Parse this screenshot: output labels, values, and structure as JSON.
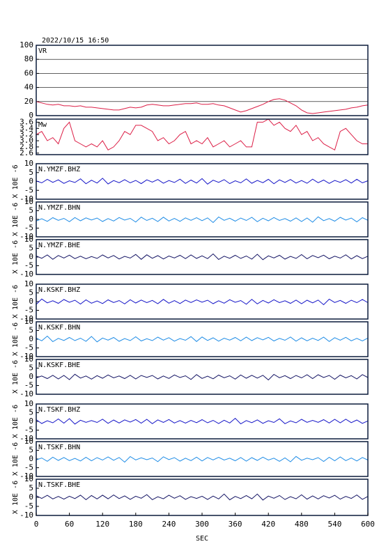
{
  "timestamp": "2022/10/15 16:50",
  "time": {
    "x": [
      0,
      10,
      20,
      30,
      40,
      50,
      60,
      70,
      80,
      90,
      100,
      110,
      120,
      130,
      140,
      150,
      160,
      170,
      180,
      190,
      200,
      210,
      220,
      230,
      240,
      250,
      260,
      270,
      280,
      290,
      300,
      310,
      320,
      330,
      340,
      350,
      360,
      370,
      380,
      390,
      400,
      410,
      420,
      430,
      440,
      450,
      460,
      470,
      480,
      490,
      500,
      510,
      520,
      530,
      540,
      550,
      560,
      570,
      580,
      590,
      600
    ],
    "xlim": [
      0,
      600
    ],
    "xticks": [
      0,
      60,
      120,
      180,
      240,
      300,
      360,
      420,
      480,
      540,
      600
    ],
    "xlabel": "SEC"
  },
  "chart_data": [
    {
      "type": "line",
      "title": "VR",
      "ylim": [
        0,
        100
      ],
      "yticks": [
        0,
        20,
        40,
        60,
        80,
        100
      ],
      "grid": true,
      "series": [
        {
          "color": "#dc1e46",
          "values": [
            20,
            18,
            16,
            15,
            16,
            14,
            14,
            13,
            14,
            12,
            12,
            11,
            10,
            9,
            8,
            8,
            10,
            12,
            11,
            12,
            15,
            16,
            15,
            14,
            14,
            15,
            16,
            17,
            17,
            18,
            16,
            16,
            17,
            15,
            14,
            11,
            8,
            5,
            7,
            10,
            13,
            16,
            20,
            23,
            24,
            22,
            18,
            14,
            8,
            4,
            3,
            4,
            5,
            6,
            7,
            8,
            9,
            11,
            12,
            14,
            15
          ]
        }
      ]
    },
    {
      "type": "line",
      "title": "Mw",
      "ylim": [
        2.55,
        3.7
      ],
      "yticks": [
        2.6,
        2.8,
        {
          "value": 3,
          "label": "3.0"
        },
        3.2,
        3.4,
        3.6
      ],
      "grid": false,
      "series": [
        {
          "color": "#dc1e46",
          "values": [
            3.2,
            3.3,
            3.0,
            3.1,
            2.9,
            3.4,
            3.6,
            3.0,
            2.9,
            2.8,
            2.9,
            2.8,
            3.0,
            2.7,
            2.8,
            3.0,
            3.3,
            3.2,
            3.5,
            3.5,
            3.4,
            3.3,
            3.0,
            3.1,
            2.9,
            3.0,
            3.2,
            3.3,
            2.9,
            3.0,
            2.9,
            3.1,
            2.8,
            2.9,
            3.0,
            2.8,
            2.9,
            3.0,
            2.8,
            2.8,
            3.6,
            3.6,
            3.7,
            3.5,
            3.6,
            3.4,
            3.3,
            3.5,
            3.2,
            3.3,
            3.0,
            3.1,
            2.9,
            2.8,
            2.7,
            3.3,
            3.4,
            3.2,
            3.0,
            2.9,
            2.9
          ]
        }
      ]
    },
    {
      "type": "line",
      "title": "N.YMZF.BHZ",
      "ylabel": "X 10E -6",
      "ylim": [
        -10,
        10
      ],
      "yticks": [
        -10,
        -5,
        0,
        5,
        10
      ],
      "grid": false,
      "series": [
        {
          "color": "#1414c8",
          "values": [
            0.3,
            -0.8,
            1.2,
            -0.5,
            0.9,
            -1.1,
            0.4,
            -0.6,
            1.5,
            -1.3,
            0.7,
            -0.9,
            1.8,
            -1.4,
            0.5,
            -0.7,
            1.0,
            -0.8,
            0.6,
            -1.2,
            0.9,
            -0.4,
            1.1,
            -1.0,
            0.5,
            -0.6,
            1.3,
            -1.1,
            0.8,
            -0.9,
            1.6,
            -1.5,
            0.7,
            -0.5,
            1.0,
            -1.2,
            0.4,
            -0.8,
            1.4,
            -1.0,
            0.6,
            -0.7,
            1.2,
            -1.3,
            0.9,
            -0.6,
            1.1,
            -0.9,
            0.5,
            -1.0,
            1.3,
            -0.7,
            0.8,
            -1.1,
            0.6,
            -0.5,
            1.0,
            -0.9,
            1.2,
            -0.8,
            0.4
          ]
        }
      ]
    },
    {
      "type": "line",
      "title": "N.YMZF.BHN",
      "ylabel": "X 10E -6",
      "ylim": [
        -10,
        10
      ],
      "yticks": [
        -10,
        -5,
        0,
        5,
        10
      ],
      "grid": false,
      "series": [
        {
          "color": "#1e8ce6",
          "values": [
            -0.9,
            0.4,
            -1.1,
            1.0,
            -0.5,
            0.6,
            -1.3,
            1.1,
            -0.8,
            0.9,
            -0.3,
            0.8,
            -1.2,
            0.5,
            -0.9,
            1.1,
            -0.4,
            0.6,
            -1.5,
            1.3,
            -0.6,
            0.7,
            -1.2,
            1.3,
            -0.9,
            0.6,
            -1.1,
            0.9,
            -0.5,
            1.0,
            -0.7,
            0.9,
            -1.8,
            1.4,
            -0.5,
            0.7,
            -1.0,
            0.8,
            -0.6,
            1.2,
            -1.3,
            0.7,
            -0.8,
            1.1,
            -0.6,
            0.5,
            -1.0,
            0.9,
            -1.2,
            0.8,
            -1.6,
            1.5,
            -0.7,
            0.5,
            -1.0,
            1.2,
            -0.4,
            0.8,
            -1.4,
            1.0,
            -0.5
          ]
        }
      ]
    },
    {
      "type": "line",
      "title": "N.YMZF.BHE",
      "ylabel": "X 10E -6",
      "ylim": [
        -10,
        10
      ],
      "yticks": [
        -10,
        -5,
        0,
        5,
        10
      ],
      "grid": false,
      "series": [
        {
          "color": "#141464",
          "values": [
            0.6,
            -0.7,
            1.2,
            -1.3,
            0.9,
            -0.6,
            1.1,
            -0.9,
            0.5,
            -1.0,
            0.3,
            -0.8,
            1.2,
            -0.5,
            0.9,
            -1.1,
            0.4,
            -0.6,
            1.5,
            -1.3,
            1.3,
            -0.7,
            0.8,
            -1.1,
            0.6,
            -0.5,
            1.0,
            -0.9,
            1.2,
            -0.8,
            0.7,
            -0.9,
            1.8,
            -1.4,
            0.5,
            -0.7,
            1.0,
            -0.8,
            0.6,
            -1.2,
            1.6,
            -1.5,
            0.7,
            -0.5,
            1.0,
            -1.2,
            0.4,
            -0.8,
            1.4,
            -1.0,
            0.9,
            -0.4,
            1.1,
            -1.0,
            0.5,
            -0.6,
            1.3,
            -1.1,
            0.8,
            -0.9,
            0.5
          ]
        }
      ]
    },
    {
      "type": "line",
      "title": "N.KSKF.BHZ",
      "ylabel": "X 10E -6",
      "ylim": [
        -10,
        10
      ],
      "yticks": [
        -10,
        -5,
        0,
        5,
        10
      ],
      "grid": false,
      "series": [
        {
          "color": "#1414c8",
          "values": [
            -1.6,
            1.5,
            -0.7,
            0.5,
            -1.0,
            1.2,
            -0.4,
            0.8,
            -1.4,
            1.0,
            -0.9,
            0.4,
            -1.1,
            1.0,
            -0.5,
            0.6,
            -1.3,
            1.1,
            -0.8,
            0.9,
            -0.6,
            0.7,
            -1.2,
            1.3,
            -0.9,
            0.6,
            -1.1,
            0.9,
            -0.5,
            1.0,
            -0.3,
            0.8,
            -1.2,
            0.5,
            -0.9,
            1.1,
            -0.4,
            0.6,
            -1.5,
            1.3,
            -1.3,
            0.7,
            -0.8,
            1.1,
            -0.6,
            0.5,
            -1.0,
            0.9,
            -1.2,
            0.8,
            -0.7,
            0.9,
            -1.8,
            1.4,
            -0.5,
            0.7,
            -1.0,
            0.8,
            -0.6,
            1.2,
            -0.6
          ]
        }
      ]
    },
    {
      "type": "line",
      "title": "N.KSKF.BHN",
      "ylabel": "X 10E -6",
      "ylim": [
        -10,
        10
      ],
      "yticks": [
        -10,
        -5,
        0,
        5,
        10
      ],
      "grid": false,
      "series": [
        {
          "color": "#1e8ce6",
          "values": [
            0.7,
            -0.9,
            1.8,
            -1.4,
            0.5,
            -0.7,
            1.0,
            -0.8,
            0.6,
            -1.2,
            1.6,
            -1.5,
            0.7,
            -0.5,
            1.0,
            -1.2,
            0.4,
            -0.8,
            1.4,
            -1.0,
            0.3,
            -0.8,
            1.2,
            -0.5,
            0.9,
            -1.1,
            0.4,
            -0.6,
            1.5,
            -1.3,
            1.3,
            -0.7,
            0.8,
            -1.1,
            0.6,
            -0.5,
            1.0,
            -0.9,
            1.2,
            -0.8,
            0.9,
            -0.4,
            1.1,
            -1.0,
            0.5,
            -0.6,
            1.3,
            -1.1,
            0.8,
            -0.9,
            0.6,
            -0.7,
            1.2,
            -1.3,
            0.9,
            -0.6,
            1.1,
            -0.9,
            0.5,
            -1.0,
            0.7
          ]
        }
      ]
    },
    {
      "type": "line",
      "title": "N.KSKF.BHE",
      "ylabel": "X 10E -6",
      "ylim": [
        -10,
        10
      ],
      "yticks": [
        -10,
        -5,
        0,
        5,
        10
      ],
      "grid": false,
      "series": [
        {
          "color": "#141464",
          "values": [
            -0.6,
            0.5,
            -1.0,
            0.9,
            -1.2,
            0.8,
            -1.6,
            1.5,
            -0.7,
            0.5,
            -1.3,
            0.7,
            -0.8,
            1.1,
            -0.6,
            0.5,
            -1.0,
            0.9,
            -1.2,
            0.8,
            -0.3,
            0.8,
            -1.2,
            0.5,
            -0.9,
            1.1,
            -0.4,
            0.6,
            -1.5,
            1.3,
            -0.9,
            0.4,
            -1.1,
            1.0,
            -0.5,
            0.6,
            -1.3,
            1.1,
            -0.8,
            0.9,
            -0.7,
            0.9,
            -1.8,
            1.4,
            -0.5,
            0.7,
            -1.0,
            0.8,
            -0.6,
            1.2,
            -1.0,
            1.2,
            -0.4,
            0.8,
            -1.4,
            1.0,
            -0.6,
            0.7,
            -1.2,
            1.3,
            -0.4
          ]
        }
      ]
    },
    {
      "type": "line",
      "title": "N.TSKF.BHZ",
      "ylabel": "X 10E -6",
      "ylim": [
        -10,
        10
      ],
      "yticks": [
        -10,
        -5,
        0,
        5,
        10
      ],
      "grid": false,
      "series": [
        {
          "color": "#1414c8",
          "values": [
            1.0,
            -1.2,
            0.4,
            -0.8,
            1.4,
            -1.0,
            1.6,
            -1.5,
            0.7,
            -0.5,
            0.5,
            -0.6,
            1.3,
            -1.1,
            0.8,
            -0.9,
            0.9,
            -0.4,
            1.1,
            -1.0,
            1.2,
            -1.3,
            0.9,
            -0.6,
            1.1,
            -0.9,
            0.5,
            -1.0,
            0.6,
            -0.7,
            1.0,
            -0.8,
            0.6,
            -1.2,
            0.7,
            -0.9,
            1.8,
            -1.4,
            0.5,
            -0.7,
            0.9,
            -1.1,
            0.4,
            -0.6,
            1.5,
            -1.3,
            0.3,
            -0.8,
            1.2,
            -0.5,
            0.6,
            -0.5,
            1.0,
            -0.9,
            1.2,
            -0.8,
            1.3,
            -0.7,
            0.8,
            -1.1,
            0.3
          ]
        }
      ]
    },
    {
      "type": "line",
      "title": "N.TSKF.BHN",
      "ylabel": "X 10E -6",
      "ylim": [
        -10,
        10
      ],
      "yticks": [
        -10,
        -5,
        0,
        5,
        10
      ],
      "grid": false,
      "series": [
        {
          "color": "#1e8ce6",
          "values": [
            -0.5,
            0.6,
            -1.3,
            1.1,
            -0.8,
            0.9,
            -0.9,
            0.4,
            -1.1,
            1.0,
            -1.0,
            0.8,
            -0.6,
            1.2,
            -0.7,
            0.9,
            -1.8,
            1.4,
            -0.5,
            0.7,
            -0.4,
            0.6,
            -1.5,
            1.3,
            -0.3,
            0.8,
            -1.2,
            0.5,
            -0.9,
            1.1,
            -1.1,
            0.9,
            -0.5,
            1.0,
            -0.6,
            0.5,
            -1.0,
            0.9,
            -1.2,
            0.8,
            -0.8,
            1.1,
            -0.6,
            0.5,
            -1.3,
            0.7,
            -1.6,
            1.5,
            -0.7,
            0.5,
            -0.4,
            0.8,
            -1.4,
            1.0,
            -1.0,
            1.2,
            -0.9,
            0.6,
            -1.1,
            0.9,
            -0.6
          ]
        }
      ]
    },
    {
      "type": "line",
      "title": "N.TSKF.BHE",
      "ylabel": "X 10E -6",
      "ylim": [
        -10,
        10
      ],
      "yticks": [
        -10,
        -5,
        0,
        5,
        10
      ],
      "grid": false,
      "series": [
        {
          "color": "#141464",
          "values": [
            0.9,
            -0.6,
            1.1,
            -0.9,
            0.5,
            -1.0,
            0.6,
            -0.7,
            1.2,
            -1.3,
            1.0,
            -0.9,
            1.2,
            -0.8,
            1.3,
            -0.7,
            0.8,
            -1.1,
            0.6,
            -0.5,
            1.5,
            -1.3,
            0.3,
            -0.8,
            1.2,
            -0.5,
            0.9,
            -1.1,
            0.4,
            -0.6,
            0.6,
            -1.2,
            0.7,
            -0.9,
            1.8,
            -1.4,
            0.5,
            -0.7,
            1.0,
            -0.8,
            1.8,
            -1.5,
            0.7,
            -0.5,
            1.0,
            -1.2,
            0.4,
            -0.8,
            1.4,
            -1.0,
            0.8,
            -0.9,
            0.9,
            -0.4,
            1.1,
            -1.0,
            0.5,
            -0.6,
            1.3,
            -1.1,
            0.5
          ]
        }
      ]
    }
  ]
}
